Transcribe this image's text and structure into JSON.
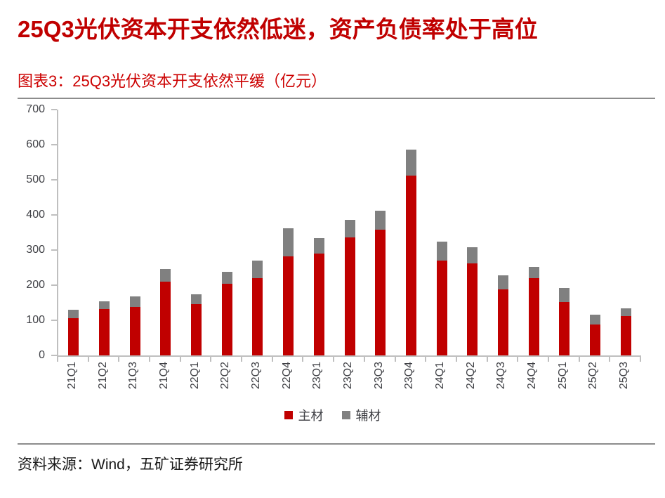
{
  "header": {
    "title": "25Q3光伏资本开支依然低迷，资产负债率处于高位"
  },
  "figure": {
    "caption": "图表3：25Q3光伏资本开支依然平缓（亿元）"
  },
  "footer": {
    "source": "资料来源：Wind，五矿证券研究所"
  },
  "colors": {
    "title_red": "#C00000",
    "caption_red": "#CC0000",
    "bar_main_red": "#C00000",
    "bar_aux_gray": "#808080",
    "axis_gray": "#BFBFBF",
    "tick_label_gray": "#3f4045",
    "rule_gray": "#8c8c8c"
  },
  "chart_data": {
    "type": "bar",
    "stacked": true,
    "title": "25Q3光伏资本开支依然平缓（亿元）",
    "unit": "亿元",
    "xlabel": "",
    "ylabel": "",
    "ylim": [
      0,
      700
    ],
    "yticks": [
      0,
      100,
      200,
      300,
      400,
      500,
      600,
      700
    ],
    "grid": false,
    "legend_position": "bottom",
    "categories": [
      "21Q1",
      "21Q2",
      "21Q3",
      "21Q4",
      "22Q1",
      "22Q2",
      "22Q3",
      "22Q4",
      "23Q1",
      "23Q2",
      "23Q3",
      "23Q4",
      "24Q1",
      "24Q2",
      "24Q3",
      "24Q4",
      "25Q1",
      "25Q2",
      "25Q3"
    ],
    "series": [
      {
        "name": "主材",
        "color": "#C00000",
        "values": [
          106,
          133,
          138,
          210,
          147,
          204,
          220,
          283,
          291,
          336,
          358,
          513,
          270,
          262,
          188,
          221,
          153,
          88,
          113
        ]
      },
      {
        "name": "辅材",
        "color": "#808080",
        "values": [
          24,
          22,
          30,
          36,
          28,
          34,
          50,
          80,
          44,
          50,
          54,
          74,
          55,
          46,
          40,
          32,
          39,
          28,
          22
        ]
      }
    ]
  }
}
